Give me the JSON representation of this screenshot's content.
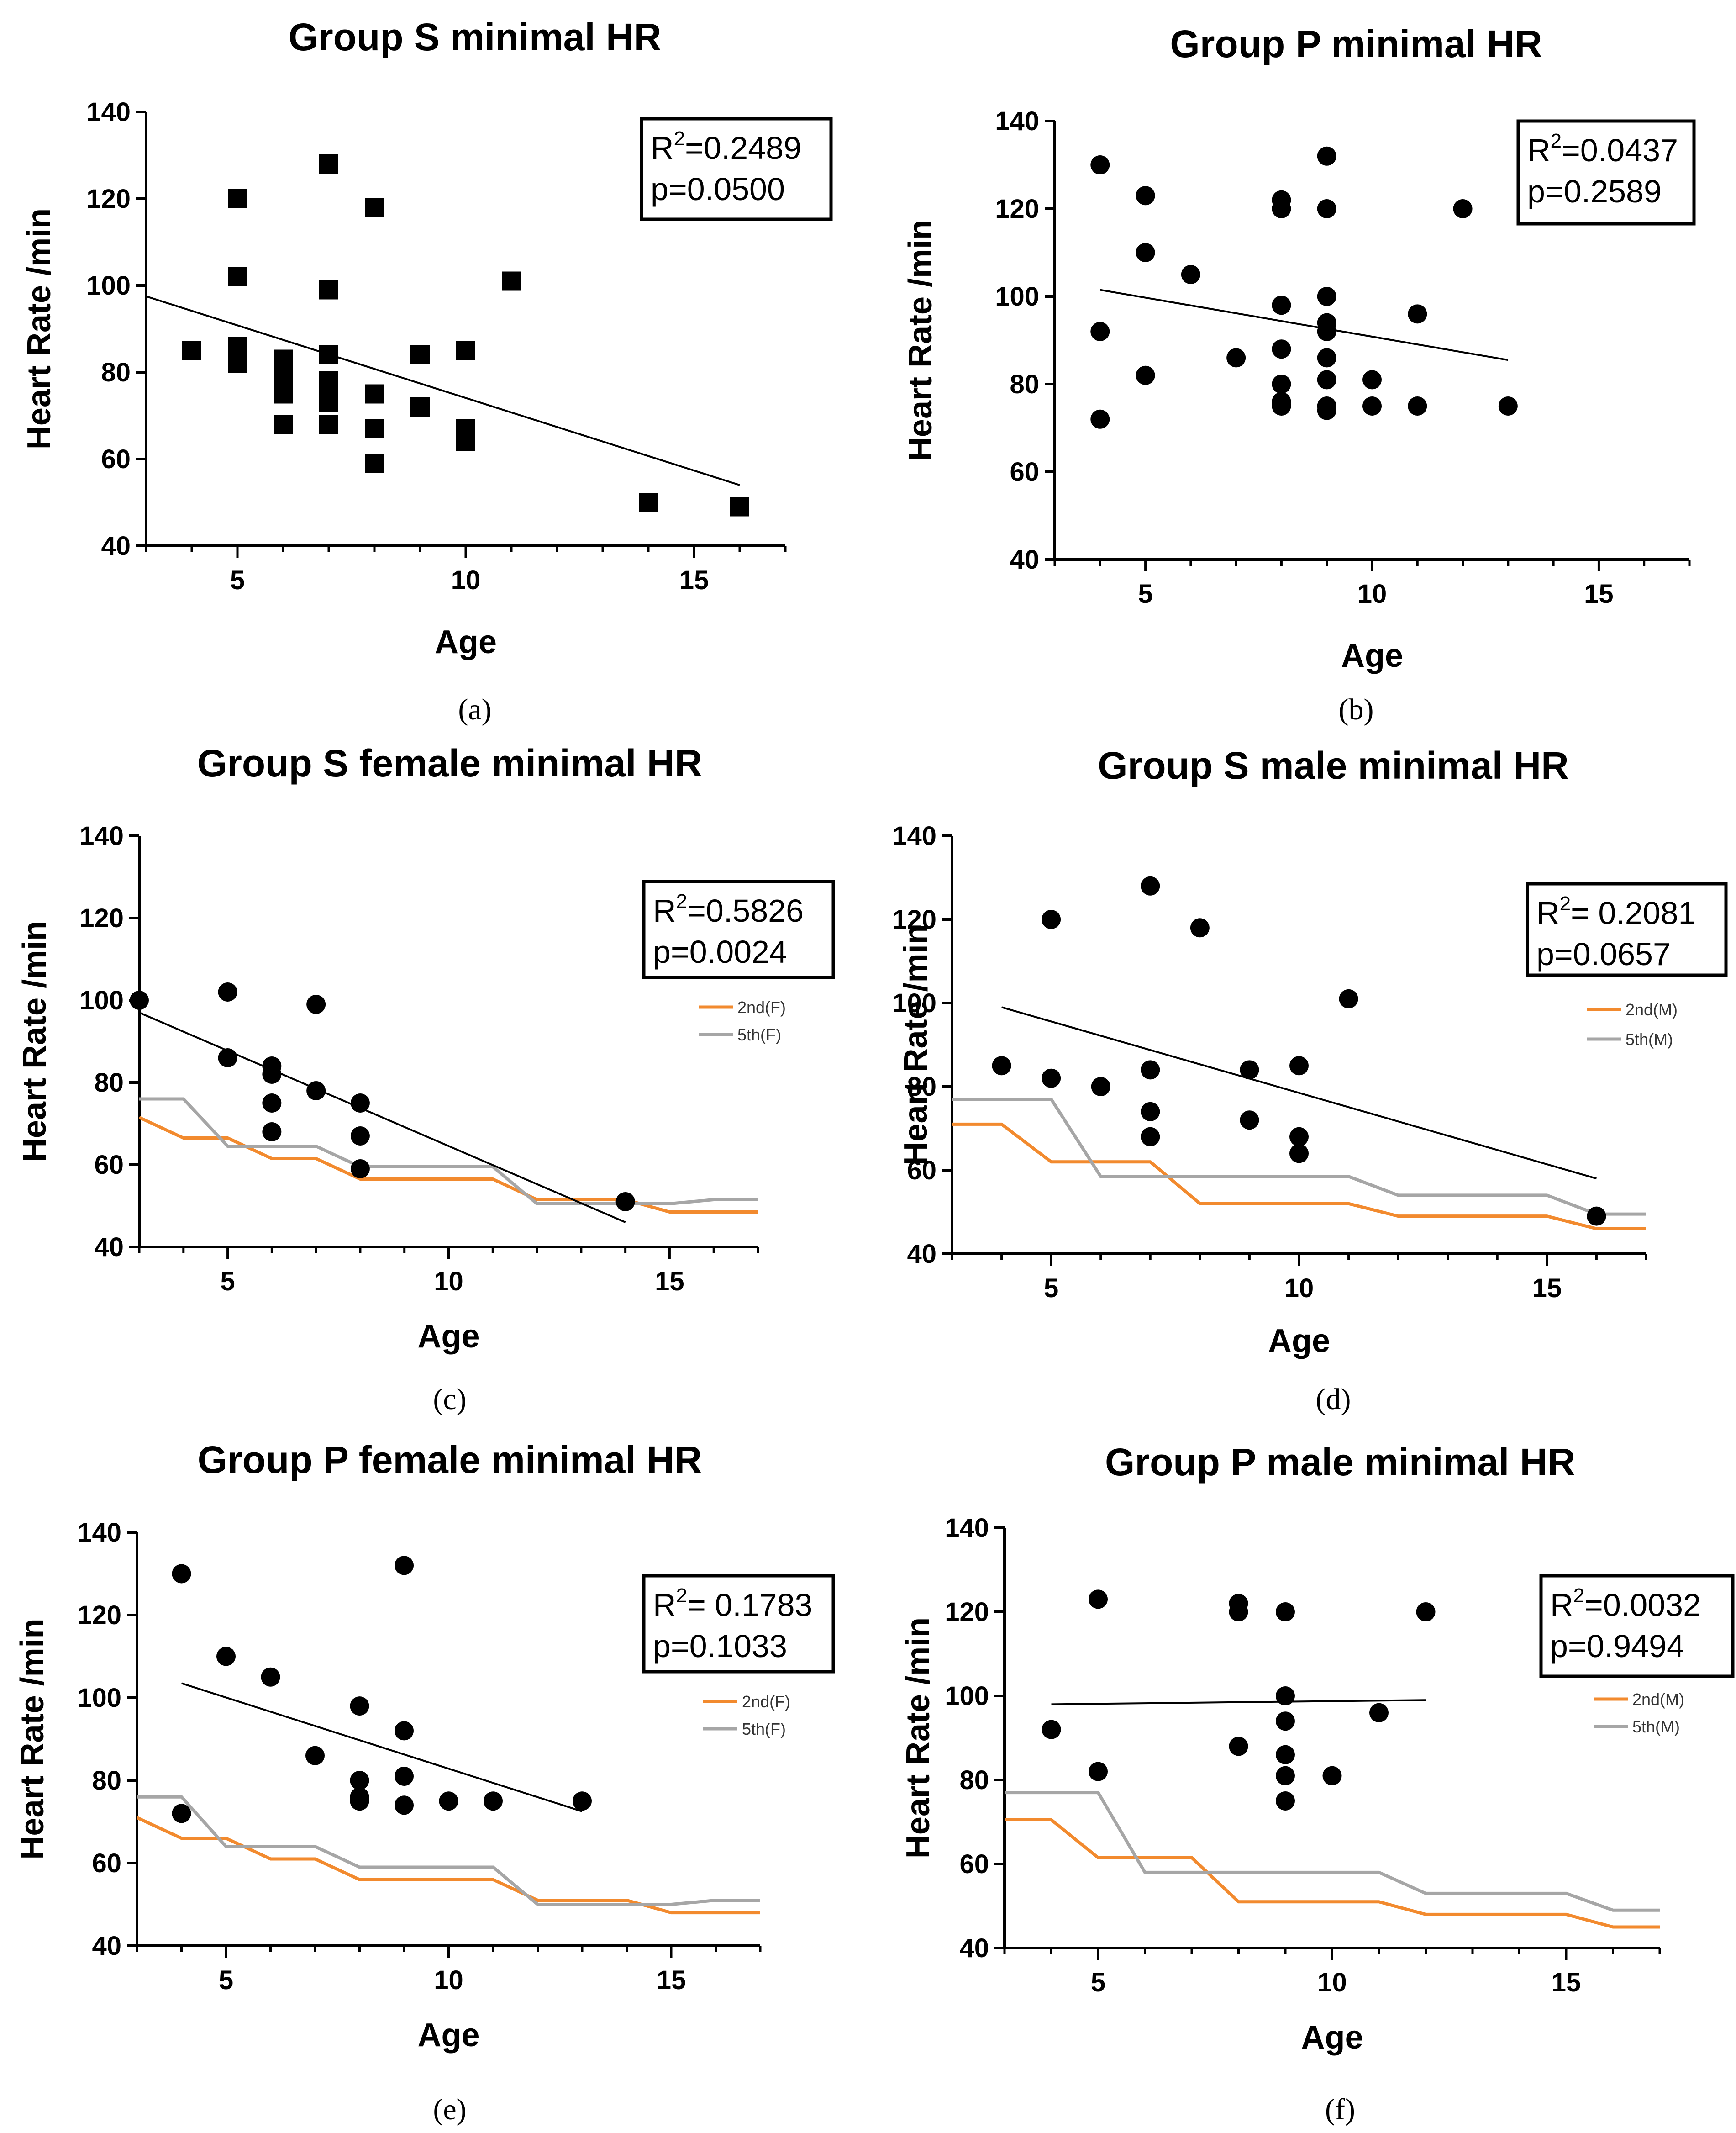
{
  "chart_data": [
    {
      "type": "scatter",
      "panel": "a",
      "caption": "(a)",
      "title": "Group S minimal HR",
      "xlabel": "Age",
      "ylabel": "Heart Rate /min",
      "xlim": [
        3,
        17
      ],
      "ylim": [
        40,
        140
      ],
      "xticks": [
        5,
        10,
        15
      ],
      "yticks": [
        40,
        60,
        80,
        100,
        120,
        140
      ],
      "marker": "square",
      "points": [
        [
          4,
          85
        ],
        [
          5,
          120
        ],
        [
          5,
          102
        ],
        [
          5,
          86
        ],
        [
          5,
          84
        ],
        [
          5,
          82
        ],
        [
          6,
          83
        ],
        [
          6,
          81
        ],
        [
          6,
          79
        ],
        [
          6,
          75
        ],
        [
          6,
          68
        ],
        [
          7,
          128
        ],
        [
          7,
          99
        ],
        [
          7,
          84
        ],
        [
          7,
          78
        ],
        [
          7,
          76
        ],
        [
          7,
          73
        ],
        [
          7,
          68
        ],
        [
          8,
          118
        ],
        [
          8,
          75
        ],
        [
          8,
          67
        ],
        [
          8,
          59
        ],
        [
          9,
          84
        ],
        [
          9,
          72
        ],
        [
          10,
          85
        ],
        [
          10,
          67
        ],
        [
          10,
          64
        ],
        [
          11,
          101
        ],
        [
          14,
          50
        ],
        [
          16,
          49
        ]
      ],
      "regression": {
        "x": [
          3,
          16
        ],
        "y": [
          97.5,
          54
        ]
      },
      "stats": {
        "r2_prefix": "R",
        "r2_value": "=0.2489",
        "p": "p=0.0500"
      }
    },
    {
      "type": "scatter",
      "panel": "b",
      "caption": "(b)",
      "title": "Group P minimal HR",
      "xlabel": "Age",
      "ylabel": "Heart Rate /min",
      "xlim": [
        3,
        17
      ],
      "ylim": [
        40,
        140
      ],
      "xticks": [
        5,
        10,
        15
      ],
      "yticks": [
        40,
        60,
        80,
        100,
        120,
        140
      ],
      "marker": "circle",
      "points": [
        [
          4,
          130
        ],
        [
          4,
          92
        ],
        [
          4,
          72
        ],
        [
          5,
          123
        ],
        [
          5,
          110
        ],
        [
          5,
          82
        ],
        [
          6,
          105
        ],
        [
          7,
          86
        ],
        [
          8,
          122
        ],
        [
          8,
          120
        ],
        [
          8,
          98
        ],
        [
          8,
          88
        ],
        [
          8,
          80
        ],
        [
          8,
          76
        ],
        [
          8,
          75
        ],
        [
          9,
          132
        ],
        [
          9,
          120
        ],
        [
          9,
          100
        ],
        [
          9,
          94
        ],
        [
          9,
          92
        ],
        [
          9,
          86
        ],
        [
          9,
          81
        ],
        [
          9,
          75
        ],
        [
          9,
          74
        ],
        [
          10,
          81
        ],
        [
          10,
          75
        ],
        [
          11,
          96
        ],
        [
          11,
          75
        ],
        [
          12,
          120
        ],
        [
          13,
          75
        ]
      ],
      "regression": {
        "x": [
          4,
          13
        ],
        "y": [
          101.5,
          85.5
        ]
      },
      "stats": {
        "r2_prefix": "R",
        "r2_value": "=0.0437",
        "p": "p=0.2589"
      }
    },
    {
      "type": "scatter",
      "panel": "c",
      "caption": "(c)",
      "title": "Group S female minimal HR",
      "xlabel": "Age",
      "ylabel": "Heart Rate /min",
      "xlim": [
        3,
        17
      ],
      "ylim": [
        40,
        140
      ],
      "xticks": [
        5,
        10,
        15
      ],
      "yticks": [
        40,
        60,
        80,
        100,
        120,
        140
      ],
      "marker": "circle",
      "points": [
        [
          3,
          100
        ],
        [
          5,
          102
        ],
        [
          5,
          86
        ],
        [
          6,
          84
        ],
        [
          6,
          82
        ],
        [
          6,
          75
        ],
        [
          6,
          68
        ],
        [
          7,
          99
        ],
        [
          7,
          78
        ],
        [
          8,
          75
        ],
        [
          8,
          67
        ],
        [
          8,
          59
        ],
        [
          14,
          51
        ]
      ],
      "regression": {
        "x": [
          3,
          14
        ],
        "y": [
          97,
          46
        ]
      },
      "stats": {
        "r2_prefix": "R",
        "r2_value": "=0.5826",
        "p": "p=0.0024"
      },
      "reference_lines": [
        {
          "name": "2nd(F)",
          "color": "#f28a2e",
          "points": [
            [
              3,
              71.5
            ],
            [
              4,
              66.5
            ],
            [
              5,
              66.5
            ],
            [
              6,
              61.5
            ],
            [
              7,
              61.5
            ],
            [
              8,
              56.5
            ],
            [
              11,
              56.5
            ],
            [
              12,
              51.5
            ],
            [
              14,
              51.5
            ],
            [
              15,
              48.5
            ],
            [
              17,
              48.5
            ]
          ]
        },
        {
          "name": "5th(F)",
          "color": "#a6a6a6",
          "points": [
            [
              3,
              76
            ],
            [
              4,
              76
            ],
            [
              5,
              64.5
            ],
            [
              6,
              64.5
            ],
            [
              7,
              64.5
            ],
            [
              8,
              59.5
            ],
            [
              11,
              59.5
            ],
            [
              12,
              50.5
            ],
            [
              14,
              50.5
            ],
            [
              15,
              50.5
            ],
            [
              16,
              51.5
            ],
            [
              17,
              51.5
            ]
          ]
        }
      ]
    },
    {
      "type": "scatter",
      "panel": "d",
      "caption": "(d)",
      "title": "Group S male minimal HR",
      "xlabel": "Age",
      "ylabel": "Heart Rate /min",
      "xlim": [
        3,
        17
      ],
      "ylim": [
        40,
        140
      ],
      "xticks": [
        5,
        10,
        15
      ],
      "yticks": [
        40,
        60,
        80,
        100,
        120,
        140
      ],
      "marker": "circle",
      "points": [
        [
          4,
          85
        ],
        [
          5,
          120
        ],
        [
          5,
          82
        ],
        [
          6,
          80
        ],
        [
          7,
          128
        ],
        [
          7,
          84
        ],
        [
          7,
          74
        ],
        [
          7,
          68
        ],
        [
          8,
          118
        ],
        [
          9,
          84
        ],
        [
          9,
          72
        ],
        [
          10,
          85
        ],
        [
          10,
          68
        ],
        [
          10,
          64
        ],
        [
          11,
          101
        ],
        [
          16,
          49
        ]
      ],
      "regression": {
        "x": [
          4,
          16
        ],
        "y": [
          99,
          58
        ]
      },
      "stats": {
        "r2_prefix": "R",
        "r2_value": "= 0.2081",
        "p": "p=0.0657"
      },
      "reference_lines": [
        {
          "name": "2nd(M)",
          "color": "#f28a2e",
          "points": [
            [
              3,
              71
            ],
            [
              4,
              71
            ],
            [
              5,
              62
            ],
            [
              7,
              62
            ],
            [
              8,
              52
            ],
            [
              11,
              52
            ],
            [
              12,
              49
            ],
            [
              15,
              49
            ],
            [
              16,
              46
            ],
            [
              17,
              46
            ]
          ]
        },
        {
          "name": "5th(M)",
          "color": "#a6a6a6",
          "points": [
            [
              3,
              77
            ],
            [
              5,
              77
            ],
            [
              6,
              58.5
            ],
            [
              11,
              58.5
            ],
            [
              12,
              54
            ],
            [
              15,
              54
            ],
            [
              16,
              49.5
            ],
            [
              17,
              49.5
            ]
          ]
        }
      ]
    },
    {
      "type": "scatter",
      "panel": "e",
      "caption": "(e)",
      "title": "Group P female minimal HR",
      "xlabel": "Age",
      "ylabel": "Heart Rate /min",
      "xlim": [
        3,
        17
      ],
      "ylim": [
        40,
        140
      ],
      "xticks": [
        5,
        10,
        15
      ],
      "yticks": [
        40,
        60,
        80,
        100,
        120,
        140
      ],
      "marker": "circle",
      "points": [
        [
          4,
          130
        ],
        [
          4,
          72
        ],
        [
          5,
          110
        ],
        [
          6,
          105
        ],
        [
          7,
          86
        ],
        [
          8,
          98
        ],
        [
          8,
          80
        ],
        [
          8,
          76
        ],
        [
          8,
          75
        ],
        [
          9,
          132
        ],
        [
          9,
          92
        ],
        [
          9,
          81
        ],
        [
          9,
          74
        ],
        [
          10,
          75
        ],
        [
          11,
          75
        ],
        [
          13,
          75
        ]
      ],
      "regression": {
        "x": [
          4,
          13
        ],
        "y": [
          103.5,
          72.5
        ]
      },
      "stats": {
        "r2_prefix": "R",
        "r2_value": "= 0.1783",
        "p": "p=0.1033"
      },
      "reference_lines": [
        {
          "name": "2nd(F)",
          "color": "#f28a2e",
          "points": [
            [
              3,
              71
            ],
            [
              4,
              66
            ],
            [
              5,
              66
            ],
            [
              6,
              61
            ],
            [
              7,
              61
            ],
            [
              8,
              56
            ],
            [
              11,
              56
            ],
            [
              12,
              51
            ],
            [
              14,
              51
            ],
            [
              15,
              48
            ],
            [
              17,
              48
            ]
          ]
        },
        {
          "name": "5th(F)",
          "color": "#a6a6a6",
          "points": [
            [
              3,
              76
            ],
            [
              4,
              76
            ],
            [
              5,
              64
            ],
            [
              7,
              64
            ],
            [
              8,
              59
            ],
            [
              11,
              59
            ],
            [
              12,
              50
            ],
            [
              15,
              50
            ],
            [
              16,
              51
            ],
            [
              17,
              51
            ]
          ]
        }
      ]
    },
    {
      "type": "scatter",
      "panel": "f",
      "caption": "(f)",
      "title": "Group P male minimal HR",
      "xlabel": "Age",
      "ylabel": "Heart Rate /min",
      "xlim": [
        3,
        17
      ],
      "ylim": [
        40,
        140
      ],
      "xticks": [
        5,
        10,
        15
      ],
      "yticks": [
        40,
        60,
        80,
        100,
        120,
        140
      ],
      "marker": "circle",
      "points": [
        [
          4,
          92
        ],
        [
          5,
          123
        ],
        [
          5,
          82
        ],
        [
          8,
          122
        ],
        [
          8,
          120
        ],
        [
          8,
          88
        ],
        [
          9,
          120
        ],
        [
          9,
          100
        ],
        [
          9,
          94
        ],
        [
          9,
          86
        ],
        [
          9,
          81
        ],
        [
          9,
          75
        ],
        [
          10,
          81
        ],
        [
          11,
          96
        ],
        [
          12,
          120
        ]
      ],
      "regression": {
        "x": [
          4,
          12
        ],
        "y": [
          98,
          99
        ]
      },
      "stats": {
        "r2_prefix": "R",
        "r2_value": "=0.0032",
        "p": "p=0.9494"
      },
      "reference_lines": [
        {
          "name": "2nd(M)",
          "color": "#f28a2e",
          "points": [
            [
              3,
              70.5
            ],
            [
              4,
              70.5
            ],
            [
              5,
              61.5
            ],
            [
              7,
              61.5
            ],
            [
              8,
              51
            ],
            [
              11,
              51
            ],
            [
              12,
              48
            ],
            [
              15,
              48
            ],
            [
              16,
              45
            ],
            [
              17,
              45
            ]
          ]
        },
        {
          "name": "5th(M)",
          "color": "#a6a6a6",
          "points": [
            [
              3,
              77
            ],
            [
              5,
              77
            ],
            [
              6,
              58
            ],
            [
              11,
              58
            ],
            [
              12,
              53
            ],
            [
              15,
              53
            ],
            [
              16,
              49
            ],
            [
              17,
              49
            ]
          ]
        }
      ]
    }
  ]
}
